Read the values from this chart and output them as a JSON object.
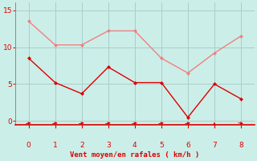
{
  "x": [
    0,
    1,
    2,
    3,
    4,
    5,
    6,
    7,
    8
  ],
  "y_moyen": [
    8.5,
    5.2,
    3.7,
    7.3,
    5.2,
    5.2,
    0.5,
    5.0,
    3.0
  ],
  "y_rafales": [
    13.5,
    10.3,
    10.3,
    12.2,
    12.2,
    8.5,
    6.5,
    9.2,
    11.5
  ],
  "color_moyen": "#dd0000",
  "color_rafales": "#f08080",
  "background_color": "#cceee8",
  "grid_color": "#aacccc",
  "xlabel": "Vent moyen/en rafales ( km/h )",
  "xlabel_color": "#dd0000",
  "tick_color": "#dd0000",
  "spine_color": "#888888",
  "ylim": [
    -0.5,
    16
  ],
  "xlim": [
    -0.5,
    8.5
  ],
  "yticks": [
    0,
    5,
    10,
    15
  ],
  "xticks": [
    0,
    1,
    2,
    3,
    4,
    5,
    6,
    7,
    8
  ],
  "wind_dirs": [
    45,
    45,
    45,
    45,
    45,
    45,
    45,
    0,
    135
  ],
  "arrow_color": "#dd0000",
  "axis_line_color": "#dd0000"
}
